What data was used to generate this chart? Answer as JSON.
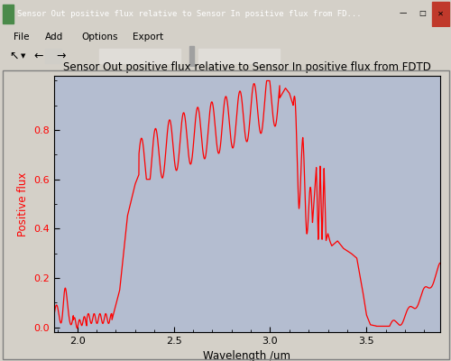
{
  "title": "Sensor Out positive flux relative to Sensor In positive flux from FDTD",
  "xlabel": "Wavelength /um",
  "ylabel": "Positive flux",
  "xlim": [
    1.88,
    3.88
  ],
  "ylim": [
    -0.02,
    1.02
  ],
  "line_color": "#ff0000",
  "axes_bg": "#b4bdd0",
  "fig_bg": "#d4d0c8",
  "outer_bg": "#d4d0c8",
  "plot_area_bg": "#ffffff",
  "ylabel_color": "#ff0000",
  "xlabel_color": "#000000",
  "title_color": "#000000",
  "xticks": [
    2.0,
    2.5,
    3.0,
    3.5
  ],
  "yticks": [
    0.0,
    0.2,
    0.4,
    0.6,
    0.8
  ],
  "title_fontsize": 8.5,
  "label_fontsize": 8.5,
  "tick_fontsize": 8,
  "window_title": "Sensor Out positive flux relative to Sensor In positive flux from FD...",
  "titlebar_color": "#0a246a",
  "titlebar_text_color": "#ffffff",
  "menu_items": [
    "File",
    "Add",
    "Options",
    "Export"
  ],
  "menu_bg": "#ece9d8",
  "toolbar_bg": "#ece9d8"
}
